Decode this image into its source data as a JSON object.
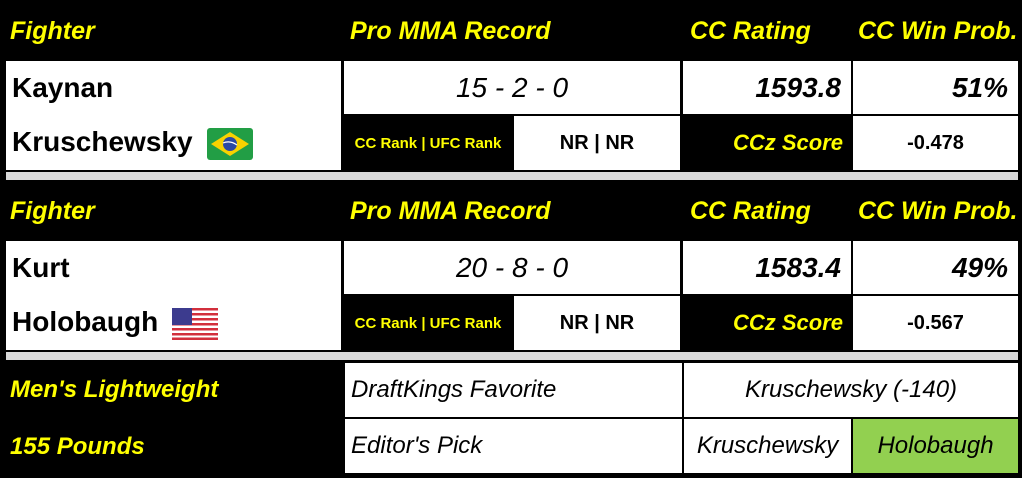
{
  "headers": {
    "fighter": "Fighter",
    "record": "Pro MMA Record",
    "rating": "CC Rating",
    "win_prob": "CC Win Prob.",
    "rank_label": "CC Rank | UFC Rank",
    "ccz_label": "CCz Score"
  },
  "fighters": [
    {
      "first": "Kaynan",
      "last": "Kruschewsky",
      "flag": "brazil-flag-icon",
      "record": "15 - 2 - 0",
      "rating": "1593.8",
      "win_prob": "51%",
      "rank": "NR | NR",
      "ccz": "-0.478"
    },
    {
      "first": "Kurt",
      "last": "Holobaugh",
      "flag": "usa-flag-icon",
      "record": "20 - 8 - 0",
      "rating": "1583.4",
      "win_prob": "49%",
      "rank": "NR | NR",
      "ccz": "-0.567"
    }
  ],
  "bout": {
    "division": "Men's Lightweight",
    "weight": "155 Pounds",
    "dk_label": "DraftKings Favorite",
    "dk_value": "Kruschewsky (-140)",
    "pick_label": "Editor's Pick",
    "pick_a": "Kruschewsky",
    "pick_b": "Holobaugh",
    "pick_highlight_color": "#92d050"
  }
}
